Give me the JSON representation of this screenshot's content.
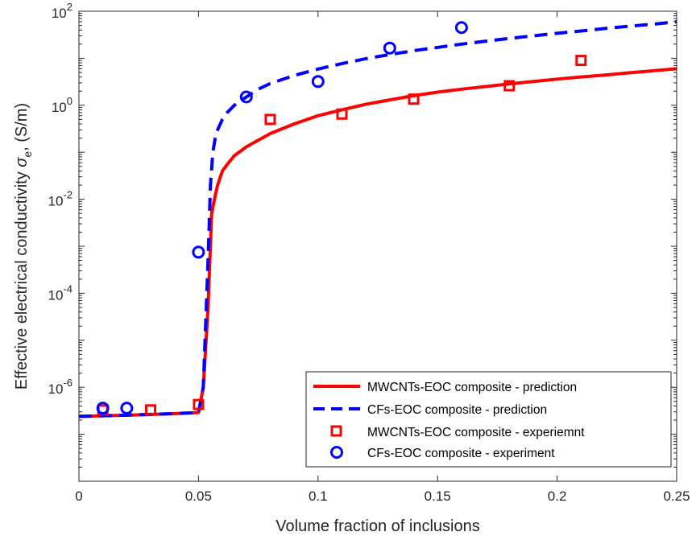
{
  "chart_data": {
    "type": "line",
    "xlabel": "Volume fraction of inclusions",
    "ylabel": {
      "main": "Effective electrical conductivity ",
      "symbol": "σ",
      "subscript": "e",
      "unit": ", (S/m)"
    },
    "xlim": [
      0,
      0.25
    ],
    "ylim": [
      1e-08,
      100
    ],
    "yscale": "log",
    "x_ticks": [
      0,
      0.05,
      0.1,
      0.15,
      0.2,
      0.25
    ],
    "x_tick_labels": [
      "0",
      "0.05",
      "0.1",
      "0.15",
      "0.2",
      "0.25"
    ],
    "y_ticks": [
      {
        "value": 1e-06,
        "base": "10",
        "exp": "-6"
      },
      {
        "value": 0.0001,
        "base": "10",
        "exp": "-4"
      },
      {
        "value": 0.01,
        "base": "10",
        "exp": "-2"
      },
      {
        "value": 1,
        "base": "10",
        "exp": "0"
      },
      {
        "value": 100,
        "base": "10",
        "exp": "2"
      }
    ],
    "grid": false,
    "legend_position": "bottom-right",
    "series": [
      {
        "name": "MWCNTs-EOC composite - prediction",
        "kind": "line",
        "style": "solid",
        "color": "#ff0000",
        "x": [
          0,
          0.02,
          0.04,
          0.05,
          0.052,
          0.054,
          0.0555,
          0.057,
          0.058,
          0.06,
          0.062,
          0.065,
          0.07,
          0.075,
          0.08,
          0.09,
          0.1,
          0.11,
          0.12,
          0.13,
          0.14,
          0.15,
          0.16,
          0.17,
          0.18,
          0.19,
          0.2,
          0.21,
          0.22,
          0.23,
          0.24,
          0.25
        ],
        "y": [
          2.4e-07,
          2.55e-07,
          2.75e-07,
          2.9e-07,
          1e-06,
          5e-05,
          0.005,
          0.012,
          0.02,
          0.04,
          0.055,
          0.085,
          0.13,
          0.18,
          0.25,
          0.4,
          0.6,
          0.8,
          1.05,
          1.3,
          1.6,
          1.9,
          2.2,
          2.5,
          2.85,
          3.2,
          3.6,
          4.0,
          4.4,
          4.9,
          5.4,
          6.0
        ]
      },
      {
        "name": "CFs-EOC composite - prediction",
        "kind": "line",
        "style": "dashed",
        "color": "#0000ff",
        "x": [
          0,
          0.02,
          0.04,
          0.05,
          0.052,
          0.054,
          0.055,
          0.056,
          0.057,
          0.058,
          0.06,
          0.062,
          0.065,
          0.07,
          0.075,
          0.08,
          0.09,
          0.1,
          0.11,
          0.12,
          0.13,
          0.14,
          0.15,
          0.16,
          0.17,
          0.18,
          0.19,
          0.2,
          0.21,
          0.22,
          0.23,
          0.24,
          0.25
        ],
        "y": [
          2.4e-07,
          2.55e-07,
          2.75e-07,
          2.9e-07,
          1e-06,
          0.0005,
          0.02,
          0.1,
          0.2,
          0.3,
          0.5,
          0.7,
          1.0,
          1.5,
          2.2,
          2.9,
          4.3,
          5.9,
          7.7,
          9.8,
          12,
          14.5,
          17,
          20,
          23,
          26.5,
          30,
          34,
          38,
          43,
          48,
          53,
          60
        ]
      },
      {
        "name": "MWCNTs-EOC composite - experiemnt",
        "kind": "scatter",
        "marker": "square",
        "color": "#ff0000",
        "x": [
          0.01,
          0.03,
          0.05,
          0.08,
          0.11,
          0.14,
          0.18,
          0.21
        ],
        "y": [
          3.3e-07,
          3.3e-07,
          4.3e-07,
          0.5,
          0.65,
          1.35,
          2.6,
          9
        ]
      },
      {
        "name": "CFs-EOC composite - experiment",
        "kind": "scatter",
        "marker": "circle",
        "color": "#0000ff",
        "x": [
          0.01,
          0.02,
          0.05,
          0.07,
          0.1,
          0.13,
          0.16
        ],
        "y": [
          3.6e-07,
          3.6e-07,
          0.00075,
          1.5,
          3.2,
          16.5,
          45
        ]
      }
    ]
  }
}
